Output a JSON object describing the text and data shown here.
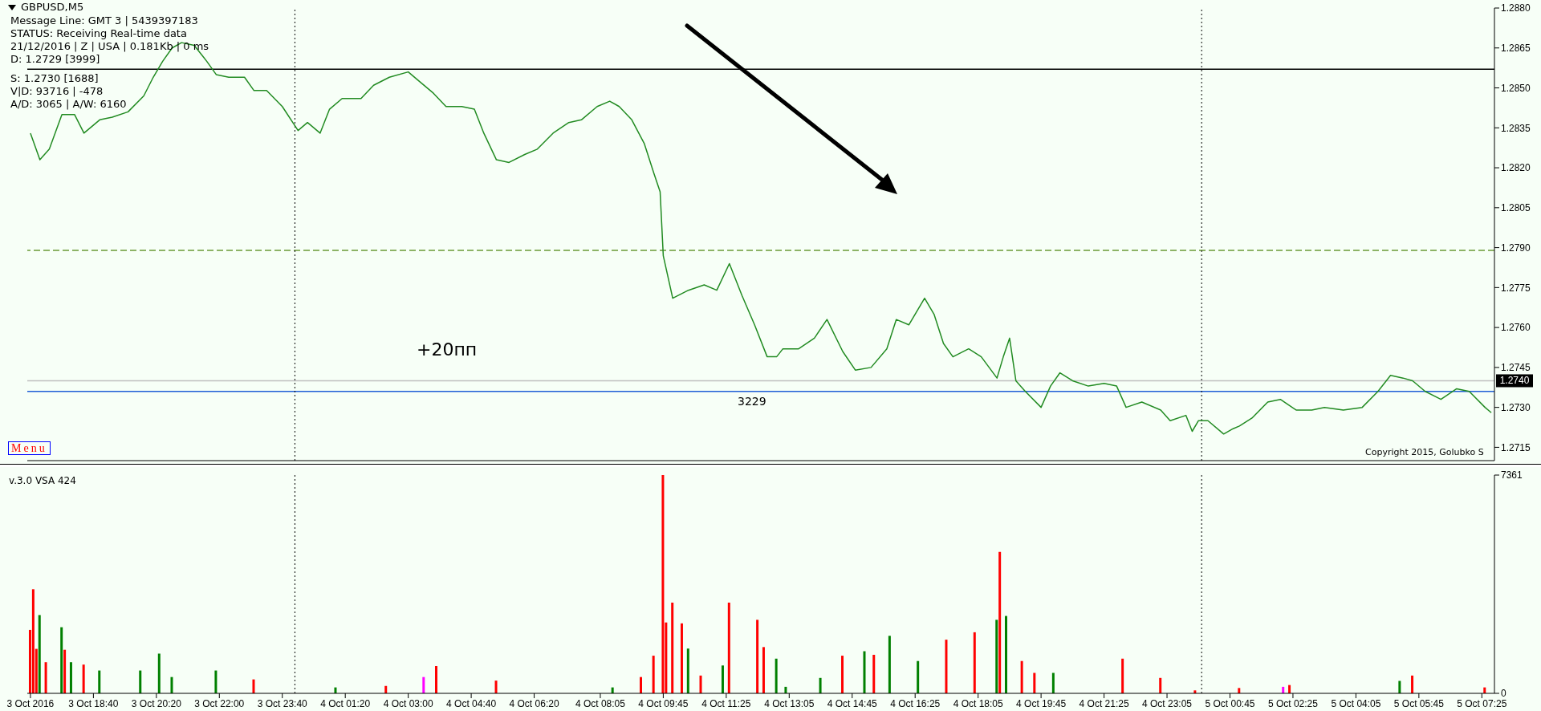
{
  "chart_data": [
    {
      "type": "line",
      "title": "GBPUSD,M5",
      "x": [
        "2016-10-03T17:00",
        "2016-10-03T17:15",
        "2016-10-03T17:30",
        "2016-10-03T17:50",
        "2016-10-03T18:10",
        "2016-10-03T18:25",
        "2016-10-03T18:50",
        "2016-10-03T19:10",
        "2016-10-03T19:35",
        "2016-10-03T20:00",
        "2016-10-03T20:15",
        "2016-10-03T20:30",
        "2016-10-03T20:45",
        "2016-10-03T21:00",
        "2016-10-03T21:20",
        "2016-10-03T21:40",
        "2016-10-03T21:55",
        "2016-10-03T22:15",
        "2016-10-03T22:40",
        "2016-10-03T22:55",
        "2016-10-03T23:15",
        "2016-10-03T23:40",
        "2016-10-04T00:05",
        "2016-10-04T00:20",
        "2016-10-04T00:40",
        "2016-10-04T00:55",
        "2016-10-04T01:15",
        "2016-10-04T01:45",
        "2016-10-04T02:05",
        "2016-10-04T02:30",
        "2016-10-04T03:00",
        "2016-10-04T03:15",
        "2016-10-04T03:40",
        "2016-10-04T04:00",
        "2016-10-04T04:25",
        "2016-10-04T04:45",
        "2016-10-04T05:00",
        "2016-10-04T05:20",
        "2016-10-04T05:40",
        "2016-10-04T06:05",
        "2016-10-04T06:25",
        "2016-10-04T06:50",
        "2016-10-04T07:15",
        "2016-10-04T07:35",
        "2016-10-04T08:00",
        "2016-10-04T08:20",
        "2016-10-04T08:35",
        "2016-10-04T08:55",
        "2016-10-04T09:15",
        "2016-10-04T09:30",
        "2016-10-04T09:40",
        "2016-10-04T09:45",
        "2016-10-04T10:00",
        "2016-10-04T10:25",
        "2016-10-04T10:50",
        "2016-10-04T11:10",
        "2016-10-04T11:30",
        "2016-10-04T11:50",
        "2016-10-04T12:10",
        "2016-10-04T12:30",
        "2016-10-04T12:45",
        "2016-10-04T12:55",
        "2016-10-04T13:20",
        "2016-10-04T13:45",
        "2016-10-04T14:05",
        "2016-10-04T14:30",
        "2016-10-04T14:50",
        "2016-10-04T15:15",
        "2016-10-04T15:40",
        "2016-10-04T15:55",
        "2016-10-04T16:15",
        "2016-10-04T16:40",
        "2016-10-04T16:55",
        "2016-10-04T17:10",
        "2016-10-04T17:25",
        "2016-10-04T17:50",
        "2016-10-04T18:10",
        "2016-10-04T18:35",
        "2016-10-04T18:45",
        "2016-10-04T18:55",
        "2016-10-04T19:05",
        "2016-10-04T19:20",
        "2016-10-04T19:45",
        "2016-10-04T20:00",
        "2016-10-04T20:15",
        "2016-10-04T20:35",
        "2016-10-04T21:00",
        "2016-10-04T21:25",
        "2016-10-04T21:45",
        "2016-10-04T22:00",
        "2016-10-04T22:25",
        "2016-10-04T22:55",
        "2016-10-04T23:10",
        "2016-10-04T23:35",
        "2016-10-04T23:45",
        "2016-10-04T23:55",
        "2016-10-05T00:10",
        "2016-10-05T00:35",
        "2016-10-05T00:50",
        "2016-10-05T01:00",
        "2016-10-05T01:20",
        "2016-10-05T01:45",
        "2016-10-05T02:05",
        "2016-10-05T02:30",
        "2016-10-05T02:55",
        "2016-10-05T03:15",
        "2016-10-05T03:45",
        "2016-10-05T04:15",
        "2016-10-05T04:40",
        "2016-10-05T05:00",
        "2016-10-05T05:20",
        "2016-10-05T05:35",
        "2016-10-05T05:55",
        "2016-10-05T06:20",
        "2016-10-05T06:45",
        "2016-10-05T07:05",
        "2016-10-05T07:30",
        "2016-10-05T07:40"
      ],
      "series": [
        {
          "color": "#228b22",
          "values": [
            1.2833,
            1.2823,
            1.2827,
            1.284,
            1.284,
            1.2833,
            1.2838,
            1.2839,
            1.2841,
            1.2847,
            1.2854,
            1.286,
            1.2865,
            1.2867,
            1.2866,
            1.286,
            1.2855,
            1.2854,
            1.2854,
            1.2849,
            1.2849,
            1.2843,
            1.2834,
            1.2837,
            1.2833,
            1.2842,
            1.2846,
            1.2846,
            1.2851,
            1.2854,
            1.2856,
            1.2853,
            1.2848,
            1.2843,
            1.2843,
            1.2842,
            1.2833,
            1.2823,
            1.2822,
            1.2825,
            1.2827,
            1.2833,
            1.2837,
            1.2838,
            1.2843,
            1.2845,
            1.2843,
            1.2838,
            1.2829,
            1.2818,
            1.2811,
            1.2787,
            1.2771,
            1.2774,
            1.2776,
            1.2774,
            1.2784,
            1.2772,
            1.2761,
            1.2749,
            1.2749,
            1.2752,
            1.2752,
            1.2756,
            1.2763,
            1.2751,
            1.2744,
            1.2745,
            1.2752,
            1.2763,
            1.2761,
            1.2771,
            1.2765,
            1.2754,
            1.2749,
            1.2752,
            1.2749,
            1.2741,
            1.2749,
            1.2756,
            1.274,
            1.2736,
            1.273,
            1.2738,
            1.2743,
            1.274,
            1.2738,
            1.2739,
            1.2738,
            1.273,
            1.2732,
            1.2729,
            1.2725,
            1.2727,
            1.2721,
            1.2725,
            1.2725,
            1.272,
            1.2722,
            1.2723,
            1.2726,
            1.2732,
            1.2733,
            1.2729,
            1.2729,
            1.273,
            1.2729,
            1.273,
            1.2736,
            1.2742,
            1.2741,
            1.274,
            1.2736,
            1.2733,
            1.2737,
            1.2736,
            1.273,
            1.2728
          ]
        }
      ],
      "xlim": [
        "2016-10-03T16:55",
        "2016-10-05T07:45"
      ],
      "ylim": [
        1.271,
        1.288
      ],
      "yticks": [
        1.2715,
        {
          "value": 1.273,
          "label": "1.2730"
        },
        1.2745,
        {
          "value": 1.276,
          "label": "1.2760"
        },
        1.2775,
        {
          "value": 1.279,
          "label": "1.2790"
        },
        1.2805,
        {
          "value": 1.282,
          "label": "1.2820"
        },
        1.2835,
        {
          "value": 1.285,
          "label": "1.2850"
        },
        1.2865,
        {
          "value": 1.288,
          "label": "1.2880"
        }
      ],
      "tick_labels": "y",
      "ref_lines": [
        {
          "axis": "y",
          "value": 1.274,
          "label": "1.2740",
          "color": "#c0c0c0"
        },
        {
          "axis": "y",
          "value": 1.2736,
          "color": "#1f5fd6"
        },
        {
          "axis": "y",
          "value": 1.2789,
          "color": "#6b9b37",
          "line_style": "dashed"
        },
        {
          "axis": "y",
          "value": 1.2857,
          "color": "#000000"
        },
        {
          "axis": "x",
          "value": "2016-10-04T00:00",
          "color": "#000000",
          "line_style": "dotted"
        },
        {
          "axis": "x",
          "value": "2016-10-05T00:00",
          "color": "#000000",
          "line_style": "dotted"
        }
      ],
      "annotations": [
        "Message Line: GMT 3 | 5439397183",
        "STATUS:  Receiving Real-time data",
        "21/12/2016 | Z | USA | 0.181Kb | 0 ms",
        "D: 1.2729  [3999]",
        "S: 1.2730  [1688]",
        "V|D: 93716 | -478",
        "A/D: 3065 | A/W: 6160",
        "+20пп",
        "3229",
        "Menu",
        "Copyright 2015, Golubko S"
      ]
    },
    {
      "type": "bar",
      "x": [
        "2016-10-03T17:00",
        "2016-10-03T17:05",
        "2016-10-03T17:10",
        "2016-10-03T17:15",
        "2016-10-03T17:25",
        "2016-10-03T17:50",
        "2016-10-03T17:55",
        "2016-10-03T18:05",
        "2016-10-03T18:25",
        "2016-10-03T18:50",
        "2016-10-03T19:55",
        "2016-10-03T20:25",
        "2016-10-03T20:45",
        "2016-10-03T21:55",
        "2016-10-03T22:55",
        "2016-10-04T01:05",
        "2016-10-04T02:25",
        "2016-10-04T03:25",
        "2016-10-04T03:45",
        "2016-10-04T05:20",
        "2016-10-04T08:25",
        "2016-10-04T09:10",
        "2016-10-04T09:30",
        "2016-10-04T09:45",
        "2016-10-04T09:50",
        "2016-10-04T10:00",
        "2016-10-04T10:15",
        "2016-10-04T10:25",
        "2016-10-04T10:45",
        "2016-10-04T11:20",
        "2016-10-04T11:30",
        "2016-10-04T12:15",
        "2016-10-04T12:25",
        "2016-10-04T12:45",
        "2016-10-04T13:00",
        "2016-10-04T13:55",
        "2016-10-04T14:30",
        "2016-10-04T15:05",
        "2016-10-04T15:20",
        "2016-10-04T15:45",
        "2016-10-04T16:30",
        "2016-10-04T17:15",
        "2016-10-04T18:00",
        "2016-10-04T18:35",
        "2016-10-04T18:40",
        "2016-10-04T18:50",
        "2016-10-04T19:15",
        "2016-10-04T19:35",
        "2016-10-04T20:05",
        "2016-10-04T21:55",
        "2016-10-04T22:55",
        "2016-10-04T23:50",
        "2016-10-05T01:00",
        "2016-10-05T02:10",
        "2016-10-05T02:20",
        "2016-10-05T05:15",
        "2016-10-05T05:35",
        "2016-10-05T07:30"
      ],
      "values": [
        2140,
        3510,
        1500,
        2640,
        1050,
        2230,
        1470,
        1050,
        970,
        770,
        770,
        1340,
        550,
        770,
        470,
        200,
        250,
        550,
        920,
        430,
        200,
        550,
        1270,
        7361,
        2390,
        3060,
        2360,
        1510,
        600,
        940,
        3060,
        2480,
        1560,
        1170,
        220,
        520,
        1270,
        1420,
        1300,
        1940,
        1090,
        1810,
        2060,
        2480,
        4770,
        2610,
        1090,
        690,
        690,
        1170,
        520,
        100,
        180,
        220,
        280,
        420,
        600,
        200
      ],
      "colors": [
        "#ff0000",
        "#ff0000",
        "#ff0000",
        "#008000",
        "#ff0000",
        "#008000",
        "#ff0000",
        "#008000",
        "#ff0000",
        "#008000",
        "#008000",
        "#008000",
        "#008000",
        "#008000",
        "#ff0000",
        "#008000",
        "#ff0000",
        "#ff00ff",
        "#ff0000",
        "#ff0000",
        "#008000",
        "#ff0000",
        "#ff0000",
        "#ff0000",
        "#ff0000",
        "#ff0000",
        "#ff0000",
        "#008000",
        "#ff0000",
        "#008000",
        "#ff0000",
        "#ff0000",
        "#ff0000",
        "#008000",
        "#008000",
        "#008000",
        "#ff0000",
        "#008000",
        "#ff0000",
        "#008000",
        "#008000",
        "#ff0000",
        "#ff0000",
        "#008000",
        "#ff0000",
        "#008000",
        "#ff0000",
        "#ff0000",
        "#008000",
        "#ff0000",
        "#ff0000",
        "#ff0000",
        "#ff0000",
        "#ff00ff",
        "#ff0000",
        "#008000",
        "#ff0000",
        "#ff0000"
      ],
      "xlim": [
        "2016-10-03T16:55",
        "2016-10-05T07:45"
      ],
      "xticks": [
        {
          "value": "2016-10-03T17:00",
          "label": "3 Oct 2016"
        },
        {
          "value": "2016-10-03T18:40",
          "label": "3 Oct 18:40"
        },
        {
          "value": "2016-10-03T20:20",
          "label": "3 Oct 20:20"
        },
        {
          "value": "2016-10-03T22:00",
          "label": "3 Oct 22:00"
        },
        {
          "value": "2016-10-03T23:40",
          "label": "3 Oct 23:40"
        },
        {
          "value": "2016-10-04T01:20",
          "label": "4 Oct 01:20"
        },
        {
          "value": "2016-10-04T03:00",
          "label": "4 Oct 03:00"
        },
        {
          "value": "2016-10-04T04:40",
          "label": "4 Oct 04:40"
        },
        {
          "value": "2016-10-04T06:20",
          "label": "4 Oct 06:20"
        },
        {
          "value": "2016-10-04T08:05",
          "label": "4 Oct 08:05"
        },
        {
          "value": "2016-10-04T09:45",
          "label": "4 Oct 09:45"
        },
        {
          "value": "2016-10-04T11:25",
          "label": "4 Oct 11:25"
        },
        {
          "value": "2016-10-04T13:05",
          "label": "4 Oct 13:05"
        },
        {
          "value": "2016-10-04T14:45",
          "label": "4 Oct 14:45"
        },
        {
          "value": "2016-10-04T16:25",
          "label": "4 Oct 16:25"
        },
        {
          "value": "2016-10-04T18:05",
          "label": "4 Oct 18:05"
        },
        {
          "value": "2016-10-04T19:45",
          "label": "4 Oct 19:45"
        },
        {
          "value": "2016-10-04T21:25",
          "label": "4 Oct 21:25"
        },
        {
          "value": "2016-10-04T23:05",
          "label": "4 Oct 23:05"
        },
        {
          "value": "2016-10-05T00:45",
          "label": "5 Oct 00:45"
        },
        {
          "value": "2016-10-05T02:25",
          "label": "5 Oct 02:25"
        },
        {
          "value": "2016-10-05T04:05",
          "label": "5 Oct 04:05"
        },
        {
          "value": "2016-10-05T05:45",
          "label": "5 Oct 05:45"
        },
        {
          "value": "2016-10-05T07:25",
          "label": "5 Oct 07:25"
        }
      ],
      "ylim": [
        0,
        7361
      ],
      "yticks": [
        0,
        7361
      ],
      "ref_lines": [
        {
          "axis": "x",
          "value": "2016-10-04T00:00",
          "color": "#000000",
          "line_style": "dotted"
        },
        {
          "axis": "x",
          "value": "2016-10-05T00:00",
          "color": "#000000",
          "line_style": "dotted"
        }
      ],
      "annotations": [
        "v.3.0 VSA 424"
      ]
    }
  ]
}
